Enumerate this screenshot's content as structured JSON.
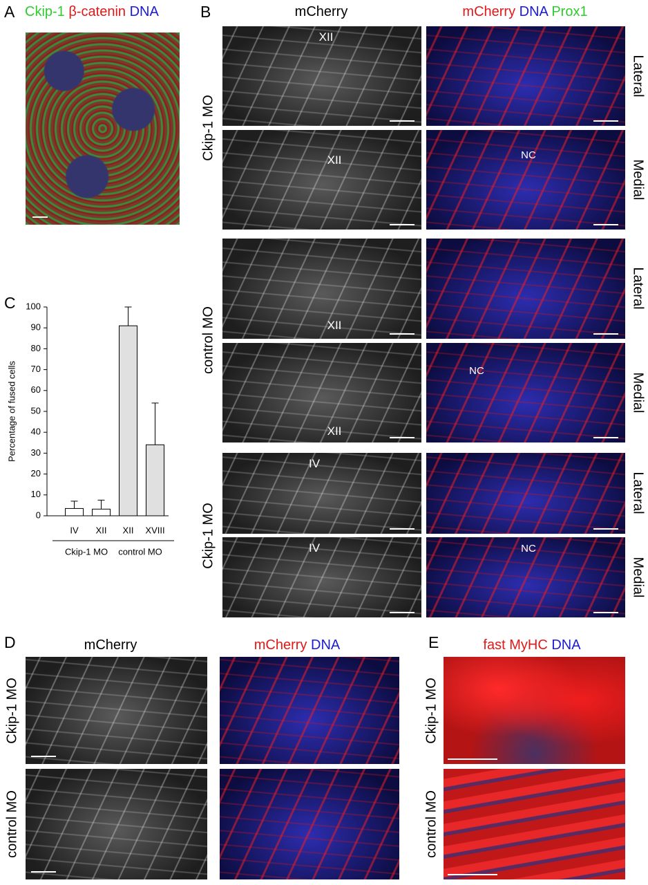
{
  "panels": {
    "A": {
      "label": "A",
      "title": [
        "Ckip-1",
        "β-catenin",
        "DNA"
      ]
    },
    "B": {
      "label": "B",
      "titles": [
        [
          "mCherry"
        ],
        [
          "mCherry",
          "DNA",
          "Prox1"
        ]
      ],
      "rows": [
        "Ckip-1 MO",
        "control MO",
        "Ckip-1 MO"
      ],
      "planes": [
        "Lateral",
        "Medial",
        "Lateral",
        "Medial",
        "Lateral",
        "Medial"
      ],
      "segment_labels": [
        "XII",
        "XII",
        "XII",
        "XII",
        "IV",
        "IV"
      ],
      "region_labels": [
        "NC",
        "NC",
        "NC"
      ]
    },
    "C": {
      "label": "C"
    },
    "D": {
      "label": "D",
      "titles": [
        [
          "mCherry"
        ],
        [
          "mCherry",
          "DNA"
        ]
      ],
      "rows": [
        "Ckip-1 MO",
        "control MO"
      ]
    },
    "E": {
      "label": "E",
      "title": [
        "fast MyHC",
        "DNA"
      ],
      "rows": [
        "Ckip-1 MO",
        "control MO"
      ]
    }
  },
  "chart_data": {
    "type": "bar",
    "ylabel": "Percentage of fused cells",
    "categories": [
      "IV",
      "XII",
      "XII",
      "XVIII"
    ],
    "groups": [
      "Ckip-1 MO",
      "control MO"
    ],
    "values": [
      3.5,
      3.2,
      91,
      34
    ],
    "errors": [
      3.5,
      4.3,
      9,
      20
    ],
    "colors": [
      "#ffffff",
      "#ffffff",
      "#e0e0e0",
      "#e0e0e0"
    ],
    "ylim": [
      0,
      100
    ],
    "yticks": [
      0,
      10,
      20,
      30,
      40,
      50,
      60,
      70,
      80,
      90,
      100
    ]
  }
}
